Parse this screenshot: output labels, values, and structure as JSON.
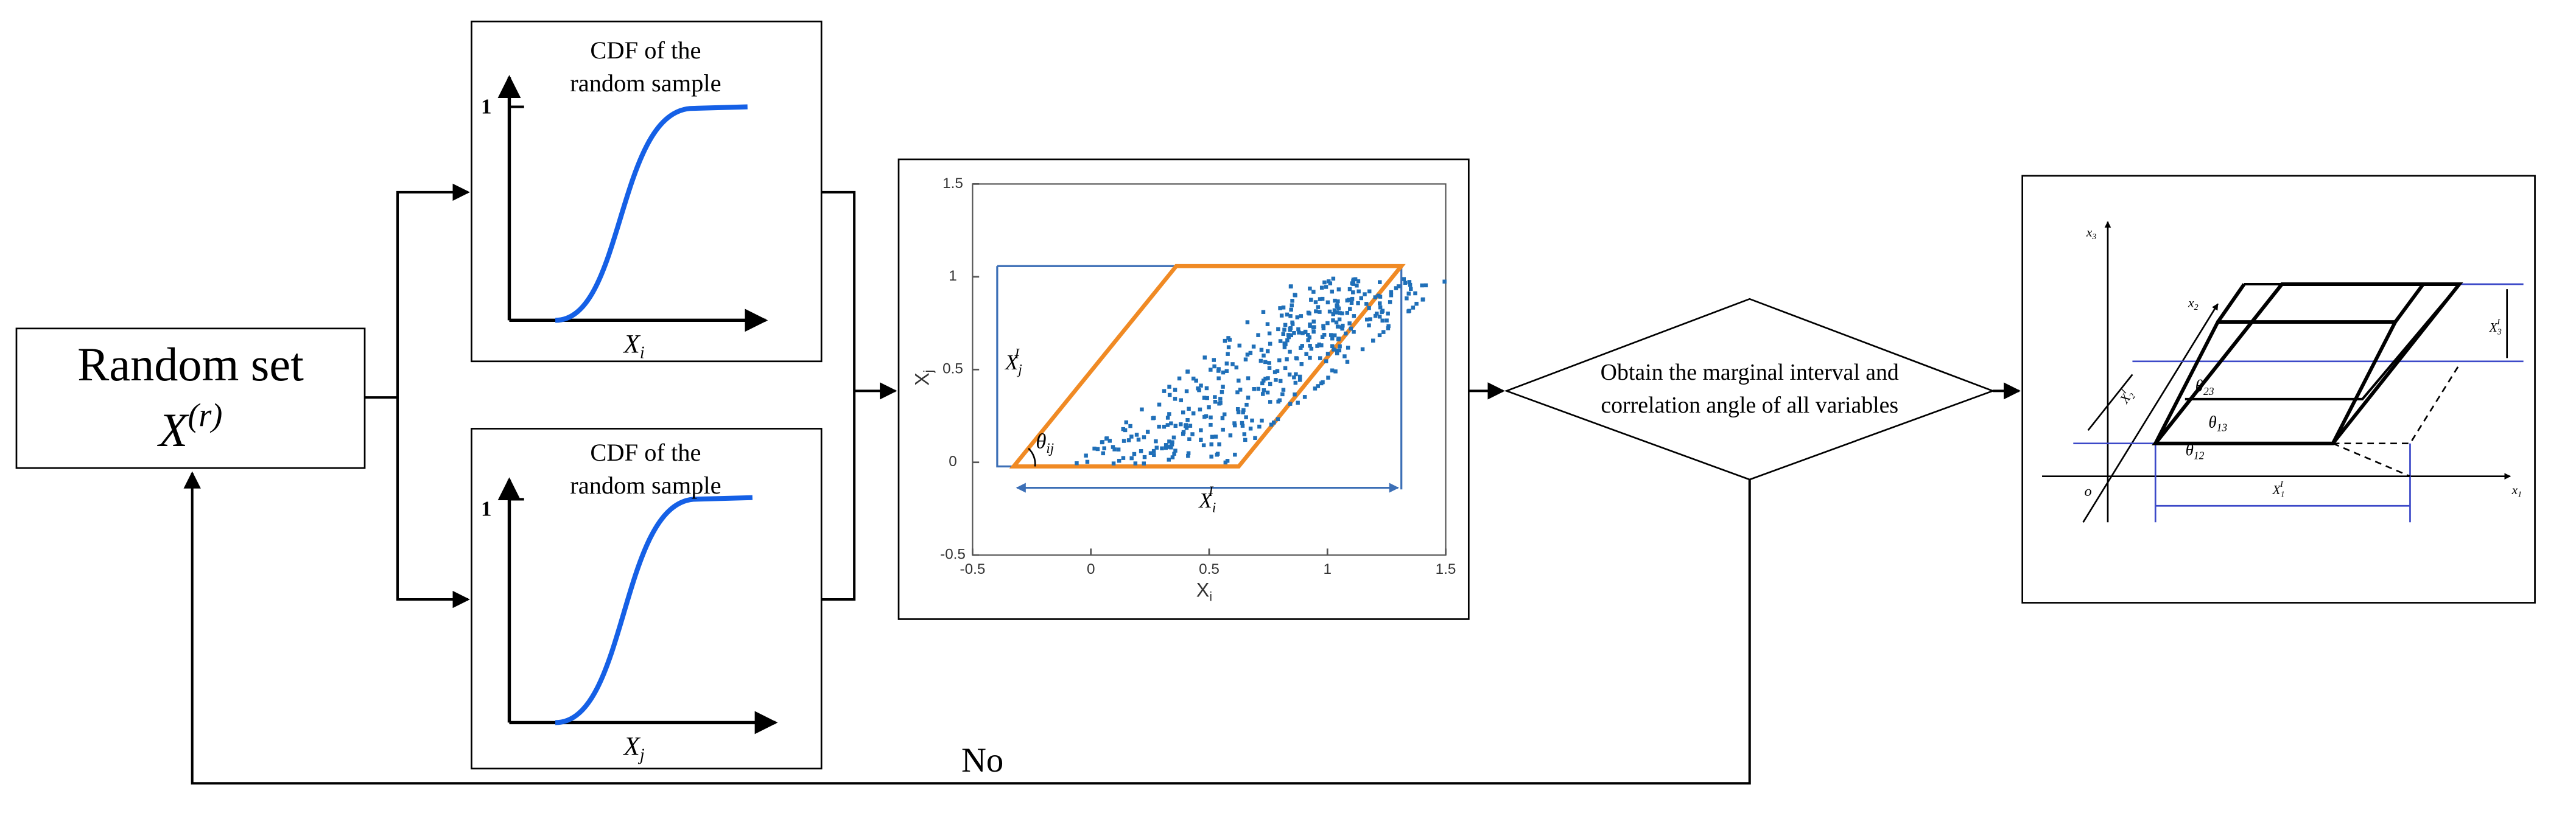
{
  "random_set": {
    "title": "Random set",
    "symbol": "X",
    "superscript": "(r)"
  },
  "cdf_panels": [
    {
      "title_lines": [
        "CDF of the",
        "random sample"
      ],
      "y_label": "1",
      "x_label": {
        "symbol": "X",
        "subscript": "i"
      }
    },
    {
      "title_lines": [
        "CDF of the",
        "random sample"
      ],
      "y_label": "1",
      "x_label": {
        "symbol": "X",
        "subscript": "j"
      }
    }
  ],
  "scatter": {
    "xticks": [
      -0.5,
      0,
      0.5,
      1,
      1.5
    ],
    "yticks": [
      -0.5,
      0,
      0.5,
      1,
      1.5
    ],
    "x_label": {
      "symbol": "X",
      "subscript": "i"
    },
    "y_label": {
      "symbol": "X",
      "subscript": "j"
    },
    "width_label": {
      "symbol": "X",
      "subscript": "i",
      "superscript": "I"
    },
    "height_label": {
      "symbol": "X",
      "subscript": "j",
      "superscript": "I"
    },
    "angle_label": {
      "symbol": "θ",
      "subscript": "ij"
    }
  },
  "decision": {
    "lines": [
      "Obtain the marginal interval and",
      "correlation angle of all variables"
    ]
  },
  "loop_label": "No",
  "box3d": {
    "axes": [
      {
        "symbol": "x",
        "subscript": "1"
      },
      {
        "symbol": "x",
        "subscript": "2"
      },
      {
        "symbol": "x",
        "subscript": "3"
      }
    ],
    "origin": "o",
    "angles": [
      {
        "symbol": "θ",
        "subscript": "23"
      },
      {
        "symbol": "θ",
        "subscript": "13"
      },
      {
        "symbol": "θ",
        "subscript": "12"
      }
    ],
    "intervals": [
      {
        "symbol": "X",
        "subscript": "1",
        "superscript": "I"
      },
      {
        "symbol": "X",
        "subscript": "2",
        "superscript": "I"
      },
      {
        "symbol": "X",
        "subscript": "3",
        "superscript": "I"
      }
    ]
  }
}
